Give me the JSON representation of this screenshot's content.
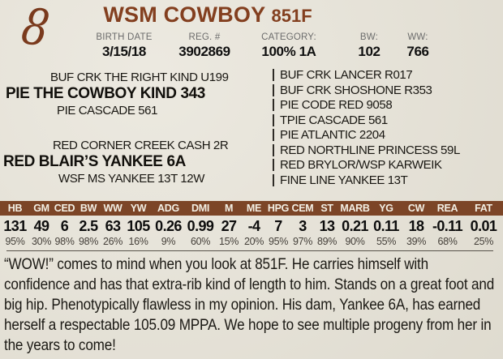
{
  "page": {
    "lot_number": "8",
    "title": {
      "main": "WSM COWBOY ",
      "suffix": "851F"
    }
  },
  "info": {
    "fields": [
      {
        "label": "BIRTH DATE",
        "value": "3/15/18"
      },
      {
        "label": "REG. #",
        "value": "3902869"
      },
      {
        "label": "CATEGORY:",
        "value": "100% 1A"
      },
      {
        "label": "BW:",
        "value": "102"
      },
      {
        "label": "WW:",
        "value": "766"
      }
    ]
  },
  "pedigree": {
    "sire_of_sire": "BUF CRK THE RIGHT KIND U199",
    "sire": "PIE THE COWBOY KIND 343",
    "dam_of_sire": "PIE CASCADE 561",
    "sire_of_dam": "RED CORNER CREEK CASH 2R",
    "dam": "RED BLAIR’S YANKEE 6A",
    "dam_of_dam": "WSF MS YANKEE 13T 12W",
    "ancestors": [
      "BUF CRK LANCER R017",
      "BUF CRK SHOSHONE R353",
      "PIE CODE RED 9058",
      "TPIE CASCADE 561",
      "PIE ATLANTIC 2204",
      "RED NORTHLINE PRINCESS 59L",
      "RED BRYLOR/WSP KARWEIK",
      "FINE LINE YANKEE 13T"
    ]
  },
  "epd": {
    "columns": [
      {
        "h": "HB",
        "v": "131",
        "p": "95%"
      },
      {
        "h": "GM",
        "v": "49",
        "p": "30%"
      },
      {
        "h": "CED",
        "v": "6",
        "p": "98%"
      },
      {
        "h": "BW",
        "v": "2.5",
        "p": "98%"
      },
      {
        "h": "WW",
        "v": "63",
        "p": "26%"
      },
      {
        "h": "YW",
        "v": "105",
        "p": "16%"
      },
      {
        "h": "ADG",
        "v": "0.26",
        "p": "9%"
      },
      {
        "h": "DMI",
        "v": "0.99",
        "p": "60%"
      },
      {
        "h": "M",
        "v": "27",
        "p": "15%"
      },
      {
        "h": "ME",
        "v": "-4",
        "p": "20%"
      },
      {
        "h": "HPG",
        "v": "7",
        "p": "95%"
      },
      {
        "h": "CEM",
        "v": "3",
        "p": "97%"
      },
      {
        "h": "ST",
        "v": "13",
        "p": "89%"
      },
      {
        "h": "MARB",
        "v": "0.21",
        "p": "90%"
      },
      {
        "h": "YG",
        "v": "0.11",
        "p": "55%"
      },
      {
        "h": "CW",
        "v": "18",
        "p": "39%"
      },
      {
        "h": "REA",
        "v": "-0.11",
        "p": "68%"
      },
      {
        "h": "FAT",
        "v": "0.01",
        "p": "25%"
      }
    ]
  },
  "description": "“WOW!” comes to mind when you look at 851F. He carries himself with confidence and has that extra-rib kind of length to him. Stands on a great foot and big hip. Phenotypically flawless in my opinion. His dam, Yankee 6A, has earned herself a respectable 105.09 MPPA. We hope to see multiple progeny from her in the years to come!",
  "colors": {
    "accent_brown": "#833f1f",
    "bar_brown": "#7c4527",
    "label_gray": "#6c6c6c",
    "background": "#e6e2d6"
  }
}
